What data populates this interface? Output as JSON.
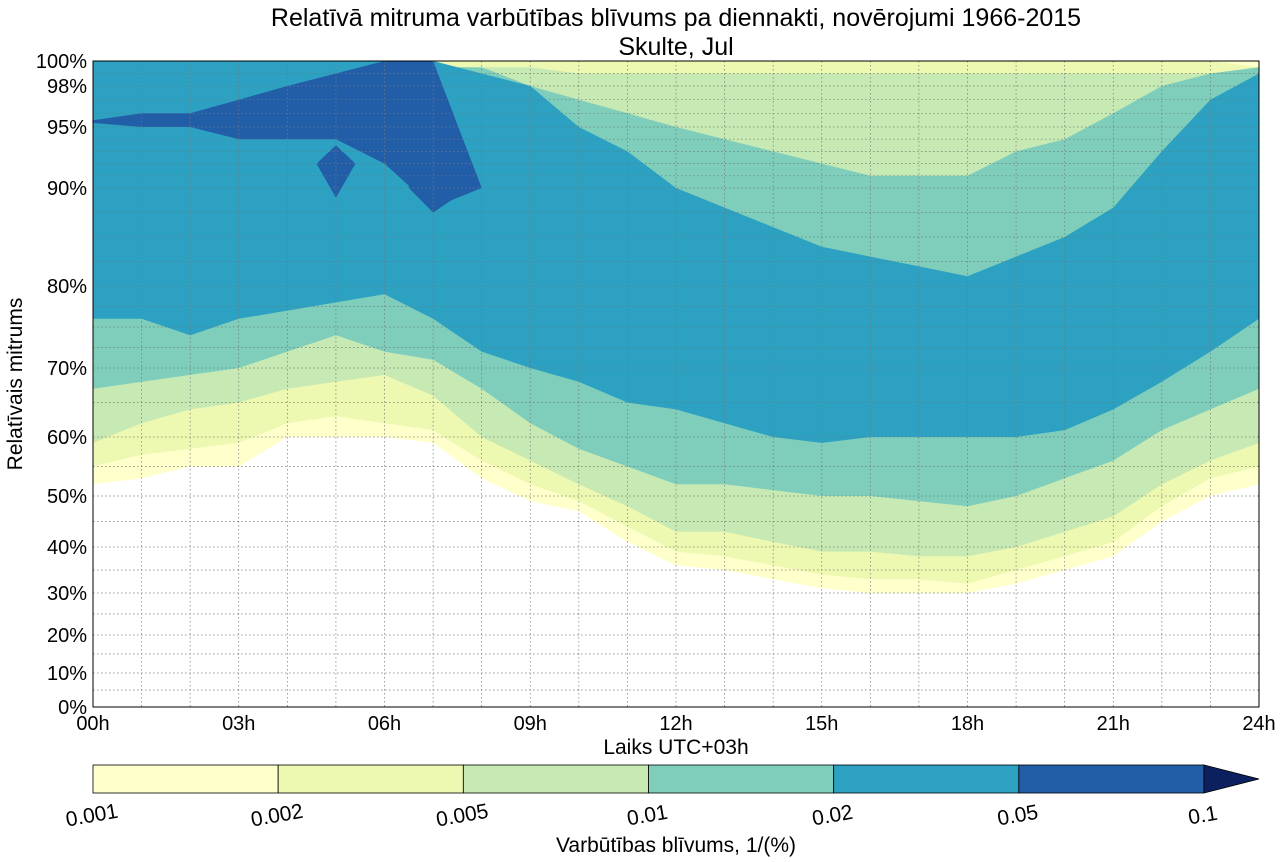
{
  "chart_data": {
    "type": "heatmap",
    "title": "Relatīvā mitruma varbūtības blīvums pa diennakti, novērojumi 1966-2015",
    "subtitle": "Skulte, Jul",
    "xlabel": "Laiks UTC+03h",
    "ylabel": "Relatīvais mitrums",
    "x_ticks": [
      "00h",
      "03h",
      "06h",
      "09h",
      "12h",
      "15h",
      "18h",
      "21h",
      "24h"
    ],
    "x_tick_hours": [
      0,
      3,
      6,
      9,
      12,
      15,
      18,
      21,
      24
    ],
    "xlim": [
      0,
      24
    ],
    "y_ticks": [
      "0%",
      "10%",
      "20%",
      "30%",
      "40%",
      "50%",
      "60%",
      "70%",
      "80%",
      "90%",
      "95%",
      "98%",
      "100%"
    ],
    "y_tick_values": [
      0,
      10,
      20,
      30,
      40,
      50,
      60,
      70,
      80,
      90,
      95,
      98,
      100
    ],
    "ylim": [
      0,
      100
    ],
    "grid": true,
    "colorbar": {
      "label": "Varbūtības blīvums, 1/(%)",
      "levels": [
        "0.001",
        "0.002",
        "0.005",
        "0.01",
        "0.02",
        "0.05",
        "0.1"
      ],
      "colors": [
        "#ffffcc",
        "#edf8b1",
        "#c7e9b4",
        "#7fcdbb",
        "#2ca1c1",
        "#225ea8",
        "#0c1f5e"
      ],
      "extend": "max"
    },
    "hours": [
      0,
      1,
      2,
      3,
      4,
      5,
      6,
      7,
      8,
      9,
      10,
      11,
      12,
      13,
      14,
      15,
      16,
      17,
      18,
      19,
      20,
      21,
      22,
      23,
      24
    ],
    "contour_levels": [
      {
        "level": "0.001",
        "color": "#ffffcc",
        "low": [
          52,
          53,
          55,
          55,
          60,
          60,
          60,
          59,
          53,
          49,
          47,
          41,
          36,
          35,
          33,
          31,
          30,
          30,
          30,
          32,
          35,
          38,
          45,
          50,
          52
        ],
        "high": [
          100,
          100,
          100,
          100,
          100,
          100,
          100,
          100,
          100,
          100,
          100,
          100,
          100,
          100,
          100,
          100,
          100,
          100,
          100,
          100,
          100,
          100,
          100,
          100,
          100
        ]
      },
      {
        "level": "0.002",
        "color": "#edf8b1",
        "low": [
          55,
          57,
          58,
          59,
          62,
          63,
          62,
          61,
          56,
          52,
          49,
          44,
          39,
          38,
          36,
          34,
          33,
          33,
          32,
          35,
          38,
          41,
          48,
          53,
          55
        ],
        "high": [
          100,
          100,
          100,
          100,
          100,
          100,
          100,
          100,
          100,
          100,
          100,
          100,
          100,
          100,
          100,
          100,
          100,
          100,
          100,
          100,
          100,
          100,
          100,
          100,
          99.5
        ]
      },
      {
        "level": "0.005",
        "color": "#c7e9b4",
        "low": [
          59,
          62,
          64,
          65,
          67,
          68,
          69,
          66,
          60,
          56,
          52,
          48,
          43,
          43,
          41,
          39,
          39,
          38,
          38,
          40,
          43,
          46,
          52,
          56,
          59
        ],
        "high": [
          99,
          99,
          99,
          99,
          99,
          99,
          99,
          99,
          99.5,
          99.5,
          99,
          99,
          99,
          99,
          99,
          99,
          99,
          99,
          99,
          99,
          99,
          99,
          99,
          99,
          99
        ]
      },
      {
        "level": "0.01",
        "color": "#7fcdbb",
        "low": [
          67,
          68,
          69,
          70,
          72,
          74,
          72,
          71,
          67,
          62,
          58,
          55,
          52,
          52,
          51,
          50,
          50,
          49,
          48,
          50,
          53,
          56,
          61,
          64,
          67
        ],
        "high": [
          99.5,
          99,
          99,
          99.5,
          99.5,
          99.5,
          99.5,
          99.5,
          99.5,
          98,
          97,
          96,
          95,
          94,
          93,
          92,
          91,
          91,
          91,
          93,
          94,
          96,
          98,
          99,
          99.5
        ]
      },
      {
        "level": "0.02",
        "color": "#2ca1c1",
        "low": [
          76,
          76,
          74,
          76,
          77,
          78,
          79,
          76,
          72,
          70,
          68,
          65,
          64,
          62,
          60,
          59,
          60,
          60,
          60,
          60,
          61,
          64,
          68,
          72,
          76
        ],
        "high": [
          100,
          100,
          100,
          100,
          100,
          100,
          100,
          100,
          99,
          98,
          95,
          93,
          90,
          88,
          86,
          84,
          83,
          82,
          81,
          83,
          85,
          88,
          93,
          97,
          99
        ]
      },
      {
        "level": "0.05",
        "color": "#225ea8",
        "low": [
          95.3,
          95,
          95,
          94,
          94,
          94,
          92,
          88,
          90,
          100,
          100,
          100,
          100,
          100,
          100,
          100,
          100,
          100,
          100,
          100,
          100,
          100,
          100,
          100,
          100
        ],
        "high": [
          95.5,
          96,
          96,
          97,
          98,
          99,
          100,
          100,
          90,
          100,
          100,
          100,
          100,
          100,
          100,
          100,
          100,
          100,
          100,
          100,
          100,
          100,
          100,
          100,
          100
        ]
      }
    ]
  }
}
